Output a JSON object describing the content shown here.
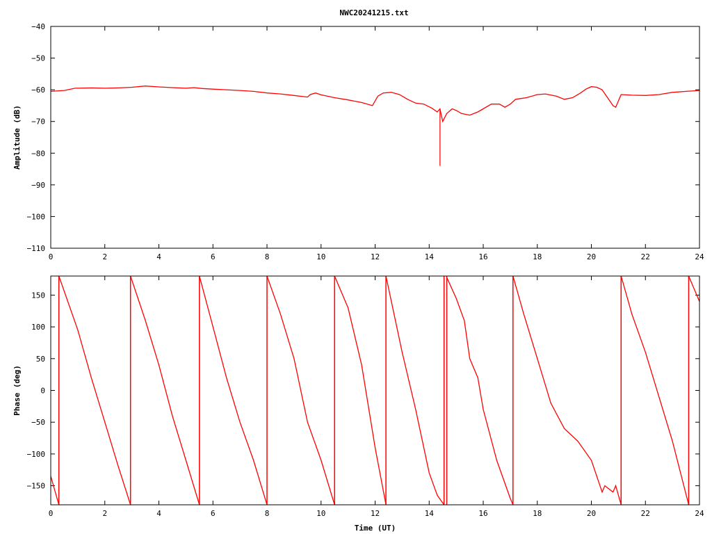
{
  "title": "NWC20241215.txt",
  "chart_data": [
    {
      "type": "line",
      "ylabel": "Amplitude (dB)",
      "xlim": [
        0,
        24
      ],
      "ylim": [
        -110,
        -40
      ],
      "xticks": [
        0,
        2,
        4,
        6,
        8,
        10,
        12,
        14,
        16,
        18,
        20,
        22,
        24
      ],
      "yticks": [
        -40,
        -50,
        -60,
        -70,
        -80,
        -90,
        -100,
        -110
      ],
      "series": [
        {
          "color": "#ff0000",
          "points": [
            [
              0,
              -60.5
            ],
            [
              0.5,
              -60.2
            ],
            [
              0.9,
              -59.5
            ],
            [
              1.5,
              -59.4
            ],
            [
              2,
              -59.5
            ],
            [
              2.5,
              -59.4
            ],
            [
              3,
              -59.2
            ],
            [
              3.5,
              -58.8
            ],
            [
              4,
              -59.1
            ],
            [
              4.5,
              -59.3
            ],
            [
              5,
              -59.5
            ],
            [
              5.3,
              -59.3
            ],
            [
              5.6,
              -59.6
            ],
            [
              6,
              -59.8
            ],
            [
              6.5,
              -60
            ],
            [
              7,
              -60.2
            ],
            [
              7.5,
              -60.5
            ],
            [
              8,
              -61
            ],
            [
              8.5,
              -61.3
            ],
            [
              9,
              -61.8
            ],
            [
              9.5,
              -62.3
            ],
            [
              9.6,
              -61.5
            ],
            [
              9.8,
              -61
            ],
            [
              10,
              -61.6
            ],
            [
              10.5,
              -62.5
            ],
            [
              11,
              -63.2
            ],
            [
              11.5,
              -64
            ],
            [
              11.9,
              -65
            ],
            [
              12.1,
              -62
            ],
            [
              12.3,
              -61
            ],
            [
              12.6,
              -60.8
            ],
            [
              12.9,
              -61.5
            ],
            [
              13.2,
              -63
            ],
            [
              13.5,
              -64.2
            ],
            [
              13.8,
              -64.5
            ],
            [
              14.1,
              -65.8
            ],
            [
              14.3,
              -67
            ],
            [
              14.4,
              -66
            ],
            [
              14.5,
              -70
            ],
            [
              14.65,
              -67.5
            ],
            [
              14.85,
              -66
            ],
            [
              15,
              -66.5
            ],
            [
              15.2,
              -67.5
            ],
            [
              15.5,
              -68
            ],
            [
              15.8,
              -67
            ],
            [
              16,
              -66
            ],
            [
              16.3,
              -64.5
            ],
            [
              16.6,
              -64.5
            ],
            [
              16.8,
              -65.5
            ],
            [
              17,
              -64.5
            ],
            [
              17.2,
              -63
            ],
            [
              17.6,
              -62.5
            ],
            [
              18,
              -61.5
            ],
            [
              18.3,
              -61.3
            ],
            [
              18.7,
              -62
            ],
            [
              19,
              -63
            ],
            [
              19.3,
              -62.5
            ],
            [
              19.6,
              -61
            ],
            [
              19.8,
              -59.8
            ],
            [
              20,
              -59
            ],
            [
              20.2,
              -59.2
            ],
            [
              20.4,
              -60
            ],
            [
              20.6,
              -62.5
            ],
            [
              20.8,
              -65
            ],
            [
              20.9,
              -65.5
            ],
            [
              21,
              -63.5
            ],
            [
              21.1,
              -61.5
            ],
            [
              21.5,
              -61.7
            ],
            [
              22,
              -61.8
            ],
            [
              22.5,
              -61.5
            ],
            [
              23,
              -60.8
            ],
            [
              23.5,
              -60.5
            ],
            [
              24,
              -60.2
            ]
          ],
          "spikes": [
            {
              "x": 14.4,
              "y": -84
            }
          ]
        }
      ]
    },
    {
      "type": "line",
      "xlabel": "Time (UT)",
      "ylabel": "Phase (deg)",
      "xlim": [
        0,
        24
      ],
      "ylim": [
        -180,
        180
      ],
      "xticks": [
        0,
        2,
        4,
        6,
        8,
        10,
        12,
        14,
        16,
        18,
        20,
        22,
        24
      ],
      "yticks": [
        150,
        100,
        50,
        0,
        -50,
        -100,
        -150
      ],
      "series": [
        {
          "color": "#ff0000",
          "segments": [
            [
              [
                0,
                -135
              ],
              [
                0.3,
                -180
              ]
            ],
            [
              [
                0.3,
                180
              ],
              [
                1,
                95
              ],
              [
                1.5,
                20
              ],
              [
                2,
                -50
              ],
              [
                2.5,
                -120
              ],
              [
                2.95,
                -180
              ]
            ],
            [
              [
                2.95,
                180
              ],
              [
                3.5,
                110
              ],
              [
                4,
                40
              ],
              [
                4.5,
                -40
              ],
              [
                5,
                -110
              ],
              [
                5.5,
                -180
              ]
            ],
            [
              [
                5.5,
                180
              ],
              [
                6,
                100
              ],
              [
                6.5,
                20
              ],
              [
                7,
                -50
              ],
              [
                7.5,
                -110
              ],
              [
                8,
                -180
              ]
            ],
            [
              [
                8,
                180
              ],
              [
                8.5,
                120
              ],
              [
                9,
                50
              ],
              [
                9.5,
                -50
              ],
              [
                10,
                -110
              ],
              [
                10.5,
                -180
              ]
            ],
            [
              [
                10.5,
                180
              ],
              [
                11,
                130
              ],
              [
                11.5,
                40
              ],
              [
                12,
                -90
              ],
              [
                12.4,
                -180
              ]
            ],
            [
              [
                12.4,
                180
              ],
              [
                13,
                60
              ],
              [
                13.5,
                -30
              ],
              [
                14,
                -130
              ],
              [
                14.3,
                -165
              ],
              [
                14.55,
                -180
              ]
            ],
            [
              [
                14.65,
                178
              ],
              [
                15,
                145
              ],
              [
                15.3,
                110
              ],
              [
                15.5,
                50
              ],
              [
                15.8,
                20
              ],
              [
                16,
                -30
              ],
              [
                16.5,
                -110
              ],
              [
                17,
                -170
              ],
              [
                17.1,
                -180
              ]
            ],
            [
              [
                17.1,
                180
              ],
              [
                17.5,
                120
              ],
              [
                18,
                50
              ],
              [
                18.5,
                -20
              ],
              [
                19,
                -60
              ],
              [
                19.5,
                -80
              ],
              [
                20,
                -110
              ],
              [
                20.4,
                -160
              ],
              [
                20.5,
                -150
              ],
              [
                20.8,
                -160
              ],
              [
                20.9,
                -150
              ],
              [
                21.1,
                -180
              ]
            ],
            [
              [
                21.1,
                180
              ],
              [
                21.5,
                120
              ],
              [
                22,
                60
              ],
              [
                22.5,
                -10
              ],
              [
                23,
                -80
              ],
              [
                23.6,
                -180
              ]
            ],
            [
              [
                23.6,
                180
              ],
              [
                23.8,
                160
              ],
              [
                24,
                140
              ]
            ]
          ],
          "wraps": [
            0.3,
            2.95,
            5.5,
            8,
            10.5,
            12.4,
            14.55,
            14.65,
            17.1,
            21.1,
            23.6
          ]
        }
      ]
    }
  ]
}
